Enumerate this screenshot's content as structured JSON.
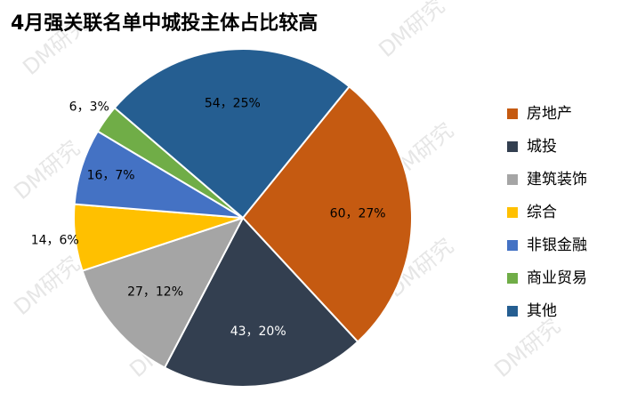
{
  "chart_data": {
    "type": "pie",
    "title": "4月强关联名单中城投主体占比较高",
    "categories": [
      "房地产",
      "城投",
      "建筑装饰",
      "综合",
      "非银金融",
      "商业贸易",
      "其他"
    ],
    "values": [
      60,
      43,
      27,
      14,
      16,
      6,
      54
    ],
    "value_labels": [
      "60，27%",
      "43，20%",
      "27，12%",
      "14，6%",
      "16，7%",
      "6，3%",
      "54，25%"
    ],
    "colors": [
      "#c55a11",
      "#333f50",
      "#a5a5a5",
      "#ffc000",
      "#4472c4",
      "#70ad47",
      "#255e91"
    ],
    "legend": "right",
    "watermark": "DM研究"
  }
}
